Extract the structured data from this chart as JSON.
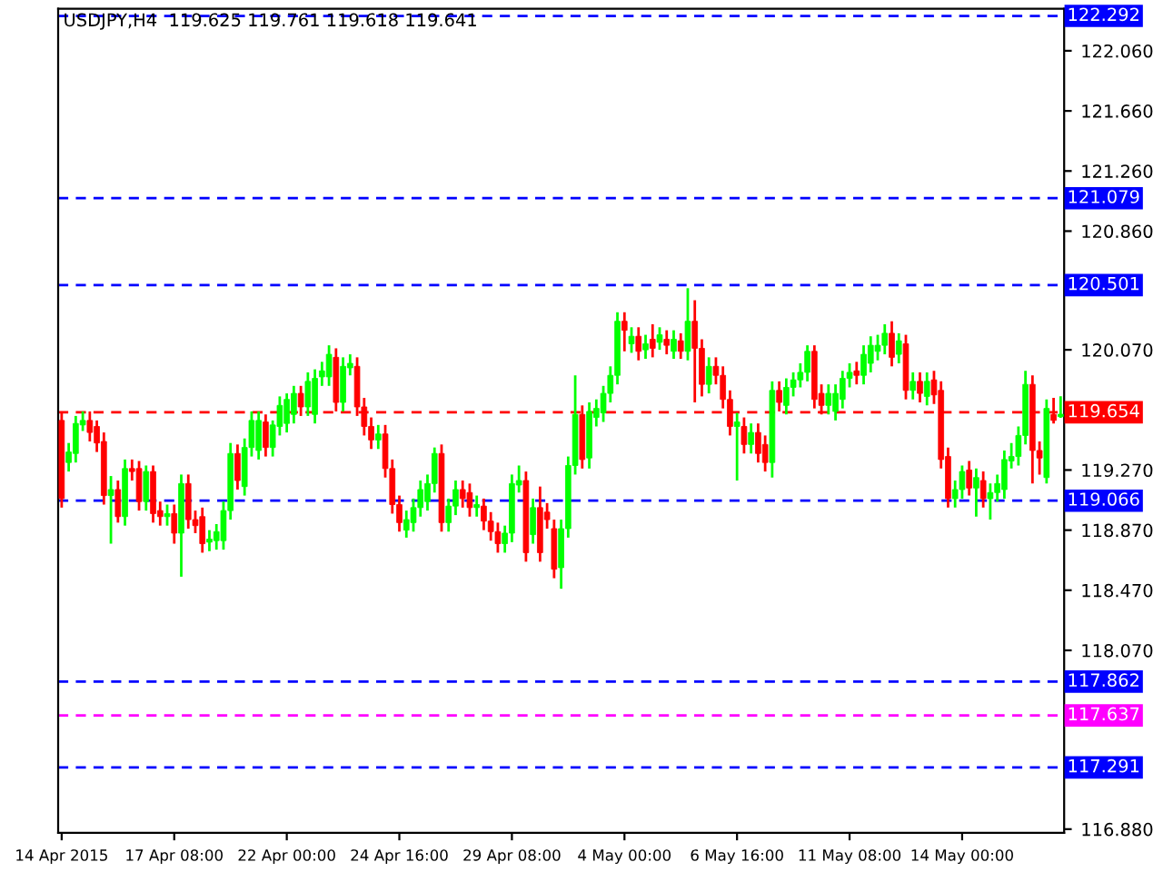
{
  "chart_data": {
    "type": "candlestick",
    "title": "USDJPY,H4  119.625 119.761 119.618 119.641",
    "categories": [
      "14 Apr 2015",
      null,
      null,
      null,
      null,
      null,
      null,
      null,
      null,
      null,
      null,
      null,
      null,
      null,
      null,
      null,
      "17 Apr 08:00",
      null,
      null,
      null,
      null,
      null,
      null,
      null,
      null,
      null,
      null,
      null,
      null,
      null,
      null,
      null,
      "22 Apr 00:00",
      null,
      null,
      null,
      null,
      null,
      null,
      null,
      null,
      null,
      null,
      null,
      null,
      null,
      null,
      null,
      "24 Apr 16:00",
      null,
      null,
      null,
      null,
      null,
      null,
      null,
      null,
      null,
      null,
      null,
      null,
      null,
      null,
      null,
      "29 Apr 08:00",
      null,
      null,
      null,
      null,
      null,
      null,
      null,
      null,
      null,
      null,
      null,
      null,
      null,
      null,
      null,
      "4 May 00:00",
      null,
      null,
      null,
      null,
      null,
      null,
      null,
      null,
      null,
      null,
      null,
      null,
      null,
      null,
      null,
      "6 May 16:00",
      null,
      null,
      null,
      null,
      null,
      null,
      null,
      null,
      null,
      null,
      null,
      null,
      null,
      null,
      null,
      "11 May 08:00",
      null,
      null,
      null,
      null,
      null,
      null,
      null,
      null,
      null,
      null,
      null,
      null,
      null,
      null,
      null,
      "14 May 00:00",
      null,
      null,
      null,
      null,
      null,
      null,
      null,
      null,
      null,
      null,
      null,
      null,
      null,
      null
    ],
    "ohlc": [
      [
        119.6,
        119.66,
        119.02,
        119.08
      ],
      [
        119.32,
        119.45,
        119.26,
        119.39
      ],
      [
        119.38,
        119.63,
        119.32,
        119.58
      ],
      [
        119.57,
        119.66,
        119.53,
        119.6
      ],
      [
        119.6,
        119.66,
        119.46,
        119.52
      ],
      [
        119.56,
        119.6,
        119.39,
        119.45
      ],
      [
        119.46,
        119.52,
        119.04,
        119.1
      ],
      [
        119.1,
        119.23,
        118.78,
        119.14
      ],
      [
        119.14,
        119.2,
        118.92,
        118.96
      ],
      [
        118.96,
        119.34,
        118.9,
        119.28
      ],
      [
        119.28,
        119.34,
        119.2,
        119.26
      ],
      [
        119.28,
        119.33,
        119.0,
        119.06
      ],
      [
        119.06,
        119.3,
        119.0,
        119.26
      ],
      [
        119.26,
        119.3,
        118.92,
        118.98
      ],
      [
        119.0,
        119.06,
        118.9,
        118.96
      ],
      [
        118.96,
        119.04,
        118.9,
        118.98
      ],
      [
        118.98,
        119.04,
        118.78,
        118.85
      ],
      [
        118.85,
        119.24,
        118.56,
        119.18
      ],
      [
        119.18,
        119.24,
        118.88,
        118.94
      ],
      [
        118.94,
        119.0,
        118.85,
        118.9
      ],
      [
        118.96,
        119.02,
        118.72,
        118.78
      ],
      [
        118.79,
        118.87,
        118.73,
        118.81
      ],
      [
        118.8,
        118.91,
        118.74,
        118.86
      ],
      [
        118.8,
        119.06,
        118.74,
        119.0
      ],
      [
        119.0,
        119.45,
        118.94,
        119.38
      ],
      [
        119.38,
        119.44,
        119.14,
        119.2
      ],
      [
        119.16,
        119.48,
        119.1,
        119.42
      ],
      [
        119.42,
        119.66,
        119.36,
        119.6
      ],
      [
        119.4,
        119.66,
        119.34,
        119.6
      ],
      [
        119.59,
        119.64,
        119.36,
        119.42
      ],
      [
        119.42,
        119.6,
        119.36,
        119.57
      ],
      [
        119.56,
        119.76,
        119.5,
        119.7
      ],
      [
        119.58,
        119.78,
        119.52,
        119.74
      ],
      [
        119.64,
        119.83,
        119.58,
        119.78
      ],
      [
        119.78,
        119.83,
        119.63,
        119.69
      ],
      [
        119.69,
        119.92,
        119.63,
        119.86
      ],
      [
        119.64,
        119.94,
        119.58,
        119.88
      ],
      [
        119.89,
        119.99,
        119.83,
        119.93
      ],
      [
        119.89,
        120.1,
        119.83,
        120.04
      ],
      [
        120.02,
        120.08,
        119.66,
        119.72
      ],
      [
        119.72,
        120.02,
        119.66,
        119.96
      ],
      [
        119.95,
        120.04,
        119.9,
        119.98
      ],
      [
        119.96,
        120.02,
        119.63,
        119.69
      ],
      [
        119.69,
        119.75,
        119.5,
        119.56
      ],
      [
        119.56,
        119.62,
        119.41,
        119.47
      ],
      [
        119.47,
        119.57,
        119.41,
        119.51
      ],
      [
        119.51,
        119.57,
        119.22,
        119.28
      ],
      [
        119.28,
        119.34,
        118.98,
        119.04
      ],
      [
        119.04,
        119.1,
        118.86,
        118.92
      ],
      [
        118.87,
        119.0,
        118.82,
        118.94
      ],
      [
        118.92,
        119.08,
        118.86,
        119.02
      ],
      [
        119.02,
        119.2,
        118.96,
        119.14
      ],
      [
        119.06,
        119.24,
        119.0,
        119.18
      ],
      [
        119.18,
        119.42,
        119.12,
        119.38
      ],
      [
        119.38,
        119.44,
        118.86,
        118.92
      ],
      [
        118.92,
        119.08,
        118.86,
        119.03
      ],
      [
        119.03,
        119.2,
        118.97,
        119.14
      ],
      [
        119.14,
        119.2,
        119.02,
        119.08
      ],
      [
        119.12,
        119.18,
        118.96,
        119.02
      ],
      [
        119.02,
        119.1,
        118.96,
        119.04
      ],
      [
        119.03,
        119.08,
        118.87,
        118.93
      ],
      [
        118.93,
        118.99,
        118.8,
        118.86
      ],
      [
        118.86,
        118.92,
        118.72,
        118.78
      ],
      [
        118.78,
        118.9,
        118.72,
        118.85
      ],
      [
        118.85,
        119.24,
        118.79,
        119.18
      ],
      [
        119.17,
        119.3,
        119.12,
        119.2
      ],
      [
        119.2,
        119.26,
        118.66,
        118.72
      ],
      [
        118.84,
        119.08,
        118.78,
        119.02
      ],
      [
        119.02,
        119.16,
        118.66,
        118.72
      ],
      [
        118.99,
        119.05,
        118.88,
        118.94
      ],
      [
        118.88,
        118.94,
        118.55,
        118.61
      ],
      [
        118.62,
        118.94,
        118.48,
        118.88
      ],
      [
        118.88,
        119.36,
        118.82,
        119.3
      ],
      [
        119.3,
        119.9,
        119.24,
        119.64
      ],
      [
        119.64,
        119.7,
        119.28,
        119.34
      ],
      [
        119.35,
        119.72,
        119.28,
        119.66
      ],
      [
        119.62,
        119.74,
        119.56,
        119.68
      ],
      [
        119.65,
        119.83,
        119.59,
        119.78
      ],
      [
        119.78,
        119.96,
        119.72,
        119.9
      ],
      [
        119.9,
        120.32,
        119.84,
        120.26
      ],
      [
        120.26,
        120.32,
        120.06,
        120.2
      ],
      [
        120.11,
        120.22,
        120.05,
        120.16
      ],
      [
        120.16,
        120.22,
        120.0,
        120.06
      ],
      [
        120.07,
        120.17,
        120.01,
        120.11
      ],
      [
        120.14,
        120.24,
        120.02,
        120.08
      ],
      [
        120.12,
        120.22,
        120.07,
        120.17
      ],
      [
        120.14,
        120.2,
        120.04,
        120.1
      ],
      [
        120.06,
        120.2,
        120.01,
        120.14
      ],
      [
        120.13,
        120.18,
        120.01,
        120.06
      ],
      [
        120.06,
        120.48,
        120.0,
        120.26
      ],
      [
        120.26,
        120.4,
        119.72,
        120.08
      ],
      [
        120.08,
        120.14,
        119.76,
        119.84
      ],
      [
        119.84,
        120.02,
        119.78,
        119.96
      ],
      [
        119.96,
        120.02,
        119.84,
        119.9
      ],
      [
        119.9,
        119.96,
        119.68,
        119.74
      ],
      [
        119.74,
        119.8,
        119.5,
        119.56
      ],
      [
        119.56,
        119.65,
        119.2,
        119.59
      ],
      [
        119.56,
        119.62,
        119.38,
        119.44
      ],
      [
        119.44,
        119.58,
        119.38,
        119.52
      ],
      [
        119.52,
        119.58,
        119.32,
        119.38
      ],
      [
        119.44,
        119.5,
        119.26,
        119.32
      ],
      [
        119.32,
        119.86,
        119.22,
        119.8
      ],
      [
        119.8,
        119.86,
        119.66,
        119.72
      ],
      [
        119.7,
        119.88,
        119.64,
        119.82
      ],
      [
        119.82,
        119.92,
        119.76,
        119.87
      ],
      [
        119.87,
        119.98,
        119.82,
        119.92
      ],
      [
        119.92,
        120.1,
        119.86,
        120.06
      ],
      [
        120.06,
        120.1,
        119.68,
        119.74
      ],
      [
        119.78,
        119.84,
        119.64,
        119.7
      ],
      [
        119.7,
        119.84,
        119.64,
        119.78
      ],
      [
        119.66,
        119.84,
        119.6,
        119.78
      ],
      [
        119.74,
        119.93,
        119.68,
        119.88
      ],
      [
        119.88,
        119.98,
        119.82,
        119.92
      ],
      [
        119.93,
        119.99,
        119.84,
        119.9
      ],
      [
        119.9,
        120.1,
        119.84,
        120.04
      ],
      [
        119.98,
        120.16,
        119.92,
        120.1
      ],
      [
        120.06,
        120.17,
        120.0,
        120.1
      ],
      [
        120.1,
        120.24,
        120.04,
        120.18
      ],
      [
        120.18,
        120.26,
        119.96,
        120.02
      ],
      [
        120.04,
        120.18,
        119.98,
        120.13
      ],
      [
        120.11,
        120.17,
        119.74,
        119.8
      ],
      [
        119.8,
        119.92,
        119.74,
        119.86
      ],
      [
        119.86,
        119.92,
        119.72,
        119.78
      ],
      [
        119.76,
        119.92,
        119.7,
        119.86
      ],
      [
        119.87,
        119.93,
        119.71,
        119.77
      ],
      [
        119.8,
        119.86,
        119.28,
        119.34
      ],
      [
        119.36,
        119.42,
        119.02,
        119.08
      ],
      [
        119.08,
        119.2,
        119.02,
        119.14
      ],
      [
        119.14,
        119.3,
        119.08,
        119.26
      ],
      [
        119.27,
        119.33,
        119.1,
        119.15
      ],
      [
        119.15,
        119.28,
        118.96,
        119.22
      ],
      [
        119.2,
        119.26,
        119.02,
        119.08
      ],
      [
        119.08,
        119.18,
        118.94,
        119.12
      ],
      [
        119.12,
        119.24,
        119.06,
        119.18
      ],
      [
        119.14,
        119.4,
        119.08,
        119.34
      ],
      [
        119.33,
        119.45,
        119.28,
        119.36
      ],
      [
        119.36,
        119.56,
        119.3,
        119.5
      ],
      [
        119.5,
        119.93,
        119.44,
        119.84
      ],
      [
        119.84,
        119.9,
        119.18,
        119.4
      ],
      [
        119.4,
        119.46,
        119.24,
        119.35
      ],
      [
        119.22,
        119.74,
        119.18,
        119.68
      ],
      [
        119.64,
        119.75,
        119.58,
        119.6
      ],
      [
        119.625,
        119.761,
        119.618,
        119.641
      ]
    ],
    "ylim": [
      116.856,
      122.34
    ],
    "yticks": [
      {
        "value": 122.06,
        "label": "122.060"
      },
      {
        "value": 121.66,
        "label": "121.660"
      },
      {
        "value": 121.26,
        "label": "121.260"
      },
      {
        "value": 120.86,
        "label": "120.860"
      },
      {
        "value": 120.07,
        "label": "120.070"
      },
      {
        "value": 119.27,
        "label": "119.270"
      },
      {
        "value": 118.87,
        "label": "118.870"
      },
      {
        "value": 118.47,
        "label": "118.470"
      },
      {
        "value": 118.07,
        "label": "118.070"
      },
      {
        "value": 116.88,
        "label": "116.880"
      }
    ],
    "ref_lines": [
      {
        "axis": "y",
        "value": 122.292,
        "label": "122.292",
        "color": "#0000ff",
        "line_style": "dashed"
      },
      {
        "axis": "y",
        "value": 121.079,
        "label": "121.079",
        "color": "#0000ff",
        "line_style": "dashed"
      },
      {
        "axis": "y",
        "value": 120.501,
        "label": "120.501",
        "color": "#0000ff",
        "line_style": "dashed"
      },
      {
        "axis": "y",
        "value": 119.654,
        "label": "119.654",
        "color": "#ff0000",
        "line_style": "dashed"
      },
      {
        "axis": "y",
        "value": 119.066,
        "label": "119.066",
        "color": "#0000ff",
        "line_style": "dashed"
      },
      {
        "axis": "y",
        "value": 117.862,
        "label": "117.862",
        "color": "#0000ff",
        "line_style": "dashed"
      },
      {
        "axis": "y",
        "value": 117.637,
        "label": "117.637",
        "color": "#ff00ff",
        "line_style": "dashed"
      },
      {
        "axis": "y",
        "value": 117.291,
        "label": "117.291",
        "color": "#0000ff",
        "line_style": "dashed"
      }
    ],
    "grid": false,
    "legend": false
  }
}
